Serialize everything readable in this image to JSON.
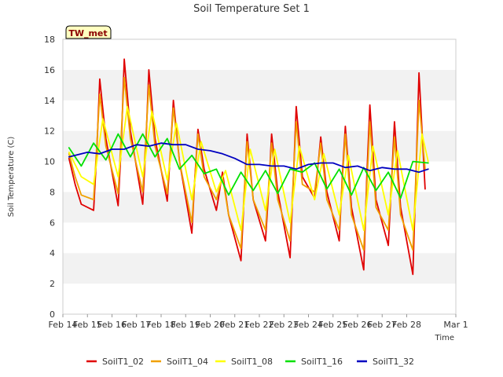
{
  "chart_data": {
    "type": "line",
    "title": "Soil Temperature Set 1",
    "tag": "TW_met",
    "xlabel": "Time",
    "ylabel": "Soil Temperature (C)",
    "xlim": [
      "2024-02-14",
      "2024-03-01"
    ],
    "ylim": [
      0,
      18
    ],
    "x_ticks": [
      {
        "date": "2024-02-14",
        "label": "Feb 14"
      },
      {
        "date": "2024-02-15",
        "label": "Feb 15"
      },
      {
        "date": "2024-02-16",
        "label": "Feb 16"
      },
      {
        "date": "2024-02-17",
        "label": "Feb 17"
      },
      {
        "date": "2024-02-18",
        "label": "Feb 18"
      },
      {
        "date": "2024-02-19",
        "label": "Feb 19"
      },
      {
        "date": "2024-02-20",
        "label": "Feb 20"
      },
      {
        "date": "2024-02-21",
        "label": "Feb 21"
      },
      {
        "date": "2024-02-22",
        "label": "Feb 22"
      },
      {
        "date": "2024-02-23",
        "label": "Feb 23"
      },
      {
        "date": "2024-02-24",
        "label": "Feb 24"
      },
      {
        "date": "2024-02-25",
        "label": "Feb 25"
      },
      {
        "date": "2024-02-26",
        "label": "Feb 26"
      },
      {
        "date": "2024-02-27",
        "label": "Feb 27"
      },
      {
        "date": "2024-02-28",
        "label": "Feb 28"
      },
      {
        "date": "2024-03-01",
        "label": "Mar 1"
      }
    ],
    "y_ticks": [
      0,
      2,
      4,
      6,
      8,
      10,
      12,
      14,
      16,
      18
    ],
    "grid": "horizontal bands",
    "legend": "bottom",
    "colors": {
      "band": "#f2f2f2",
      "plot_bg": "#ffffff",
      "axis": "#cccccc",
      "tag_bg": "#ffffc0"
    },
    "series": [
      {
        "name": "SoilT1_02",
        "color": "#e00000",
        "x": [
          "2024-02-14 06:00",
          "2024-02-14 12:00",
          "2024-02-14 18:00",
          "2024-02-15 06:00",
          "2024-02-15 09:00",
          "2024-02-15 12:00",
          "2024-02-15 18:00",
          "2024-02-16 06:00",
          "2024-02-16 09:00",
          "2024-02-16 12:00",
          "2024-02-16 18:00",
          "2024-02-17 06:00",
          "2024-02-17 09:00",
          "2024-02-17 12:00",
          "2024-02-17 18:00",
          "2024-02-18 06:00",
          "2024-02-18 09:00",
          "2024-02-18 12:00",
          "2024-02-18 18:00",
          "2024-02-19 06:00",
          "2024-02-19 09:00",
          "2024-02-19 12:00",
          "2024-02-19 18:00",
          "2024-02-20 06:00",
          "2024-02-20 09:00",
          "2024-02-20 12:00",
          "2024-02-20 18:00",
          "2024-02-21 06:00",
          "2024-02-21 09:00",
          "2024-02-21 12:00",
          "2024-02-21 18:00",
          "2024-02-22 06:00",
          "2024-02-22 09:00",
          "2024-02-22 12:00",
          "2024-02-22 18:00",
          "2024-02-23 06:00",
          "2024-02-23 09:00",
          "2024-02-23 12:00",
          "2024-02-23 18:00",
          "2024-02-24 06:00",
          "2024-02-24 09:00",
          "2024-02-24 12:00",
          "2024-02-24 18:00",
          "2024-02-25 06:00",
          "2024-02-25 09:00",
          "2024-02-25 12:00",
          "2024-02-25 18:00",
          "2024-02-26 06:00",
          "2024-02-26 09:00",
          "2024-02-26 12:00",
          "2024-02-26 18:00",
          "2024-02-27 06:00",
          "2024-02-27 09:00",
          "2024-02-27 12:00",
          "2024-02-27 18:00",
          "2024-02-28 06:00",
          "2024-02-28 09:00",
          "2024-02-28 12:00",
          "2024-02-28 18:00"
        ],
        "values": [
          10.2,
          8.5,
          7.2,
          6.8,
          10.5,
          15.4,
          11.5,
          7.1,
          11.0,
          16.7,
          12.0,
          7.2,
          11.0,
          16.0,
          11.5,
          7.4,
          10.5,
          14.0,
          10.0,
          5.3,
          9.0,
          12.1,
          9.5,
          6.8,
          8.0,
          9.3,
          6.5,
          3.5,
          7.5,
          11.8,
          7.5,
          4.8,
          8.0,
          11.8,
          8.0,
          3.7,
          8.5,
          13.6,
          9.0,
          7.6,
          9.5,
          11.6,
          8.0,
          4.8,
          9.0,
          12.3,
          7.0,
          2.9,
          9.0,
          13.7,
          7.5,
          4.5,
          8.5,
          12.6,
          7.0,
          2.6,
          9.0,
          15.8,
          8.2
        ]
      },
      {
        "name": "SoilT1_04",
        "color": "#f0a000",
        "x": [
          "2024-02-14 06:00",
          "2024-02-14 12:00",
          "2024-02-14 18:00",
          "2024-02-15 06:00",
          "2024-02-15 12:00",
          "2024-02-15 18:00",
          "2024-02-16 06:00",
          "2024-02-16 12:00",
          "2024-02-16 18:00",
          "2024-02-17 06:00",
          "2024-02-17 12:00",
          "2024-02-17 18:00",
          "2024-02-18 06:00",
          "2024-02-18 12:00",
          "2024-02-18 18:00",
          "2024-02-19 06:00",
          "2024-02-19 12:00",
          "2024-02-19 18:00",
          "2024-02-20 06:00",
          "2024-02-20 12:00",
          "2024-02-20 18:00",
          "2024-02-21 06:00",
          "2024-02-21 12:00",
          "2024-02-21 18:00",
          "2024-02-22 06:00",
          "2024-02-22 12:00",
          "2024-02-22 18:00",
          "2024-02-23 06:00",
          "2024-02-23 12:00",
          "2024-02-23 18:00",
          "2024-02-24 06:00",
          "2024-02-24 12:00",
          "2024-02-24 18:00",
          "2024-02-25 06:00",
          "2024-02-25 12:00",
          "2024-02-25 18:00",
          "2024-02-26 06:00",
          "2024-02-26 12:00",
          "2024-02-26 18:00",
          "2024-02-27 06:00",
          "2024-02-27 12:00",
          "2024-02-27 18:00",
          "2024-02-28 06:00",
          "2024-02-28 12:00",
          "2024-02-28 18:00"
        ],
        "values": [
          10.5,
          9.0,
          7.8,
          7.5,
          14.4,
          11.0,
          7.9,
          15.5,
          11.5,
          8.0,
          15.0,
          11.0,
          7.9,
          13.5,
          10.0,
          6.0,
          11.8,
          9.0,
          7.5,
          9.0,
          6.5,
          4.3,
          11.3,
          7.5,
          5.5,
          11.2,
          7.5,
          4.8,
          12.6,
          8.5,
          8.0,
          11.2,
          7.5,
          5.5,
          11.8,
          6.5,
          4.2,
          12.6,
          7.0,
          5.5,
          11.6,
          6.5,
          4.2,
          14.0,
          9.5
        ]
      },
      {
        "name": "SoilT1_08",
        "color": "#ffff00",
        "x": [
          "2024-02-14 06:00",
          "2024-02-14 18:00",
          "2024-02-15 06:00",
          "2024-02-15 15:00",
          "2024-02-16 06:00",
          "2024-02-16 15:00",
          "2024-02-17 06:00",
          "2024-02-17 15:00",
          "2024-02-18 06:00",
          "2024-02-18 15:00",
          "2024-02-19 06:00",
          "2024-02-19 15:00",
          "2024-02-20 06:00",
          "2024-02-20 15:00",
          "2024-02-21 06:00",
          "2024-02-21 15:00",
          "2024-02-22 06:00",
          "2024-02-22 15:00",
          "2024-02-23 06:00",
          "2024-02-23 15:00",
          "2024-02-24 06:00",
          "2024-02-24 15:00",
          "2024-02-25 06:00",
          "2024-02-25 15:00",
          "2024-02-26 06:00",
          "2024-02-26 15:00",
          "2024-02-27 06:00",
          "2024-02-27 15:00",
          "2024-02-28 06:00",
          "2024-02-28 15:00",
          "2024-02-28 21:00"
        ],
        "values": [
          10.6,
          9.0,
          8.5,
          12.8,
          9.0,
          13.6,
          9.0,
          13.3,
          8.8,
          12.5,
          7.5,
          11.3,
          8.0,
          9.4,
          5.5,
          10.8,
          6.8,
          10.8,
          6.0,
          11.0,
          7.5,
          10.5,
          6.5,
          10.4,
          5.5,
          11.0,
          6.5,
          10.7,
          5.5,
          11.8,
          10.0
        ]
      },
      {
        "name": "SoilT1_16",
        "color": "#00e000",
        "x": [
          "2024-02-14 06:00",
          "2024-02-14 18:00",
          "2024-02-15 06:00",
          "2024-02-15 18:00",
          "2024-02-16 06:00",
          "2024-02-16 18:00",
          "2024-02-17 06:00",
          "2024-02-17 18:00",
          "2024-02-18 06:00",
          "2024-02-18 18:00",
          "2024-02-19 06:00",
          "2024-02-19 18:00",
          "2024-02-20 06:00",
          "2024-02-20 18:00",
          "2024-02-21 06:00",
          "2024-02-21 18:00",
          "2024-02-22 06:00",
          "2024-02-22 18:00",
          "2024-02-23 06:00",
          "2024-02-23 18:00",
          "2024-02-24 06:00",
          "2024-02-24 18:00",
          "2024-02-25 06:00",
          "2024-02-25 18:00",
          "2024-02-26 06:00",
          "2024-02-26 18:00",
          "2024-02-27 06:00",
          "2024-02-27 18:00",
          "2024-02-28 06:00",
          "2024-02-28 21:00"
        ],
        "values": [
          10.9,
          9.7,
          11.2,
          10.1,
          11.8,
          10.3,
          11.8,
          10.3,
          11.5,
          9.5,
          10.4,
          9.2,
          9.5,
          7.8,
          9.3,
          8.1,
          9.4,
          7.9,
          9.5,
          9.3,
          9.9,
          8.2,
          9.5,
          7.8,
          9.6,
          8.1,
          9.3,
          7.6,
          10.0,
          9.9
        ]
      },
      {
        "name": "SoilT1_32",
        "color": "#0000c0",
        "x": [
          "2024-02-14 06:00",
          "2024-02-15 00:00",
          "2024-02-15 12:00",
          "2024-02-16 00:00",
          "2024-02-16 12:00",
          "2024-02-17 00:00",
          "2024-02-17 12:00",
          "2024-02-18 00:00",
          "2024-02-18 12:00",
          "2024-02-19 00:00",
          "2024-02-19 12:00",
          "2024-02-20 00:00",
          "2024-02-20 12:00",
          "2024-02-21 00:00",
          "2024-02-21 12:00",
          "2024-02-22 00:00",
          "2024-02-22 12:00",
          "2024-02-23 00:00",
          "2024-02-23 12:00",
          "2024-02-24 00:00",
          "2024-02-24 12:00",
          "2024-02-25 00:00",
          "2024-02-25 12:00",
          "2024-02-26 00:00",
          "2024-02-26 12:00",
          "2024-02-27 00:00",
          "2024-02-27 12:00",
          "2024-02-28 00:00",
          "2024-02-28 12:00",
          "2024-02-28 21:00"
        ],
        "values": [
          10.3,
          10.6,
          10.5,
          10.8,
          10.8,
          11.1,
          11.0,
          11.2,
          11.1,
          11.1,
          10.8,
          10.7,
          10.5,
          10.2,
          9.8,
          9.8,
          9.7,
          9.7,
          9.5,
          9.8,
          9.9,
          9.9,
          9.6,
          9.7,
          9.4,
          9.6,
          9.5,
          9.5,
          9.3,
          9.5
        ]
      }
    ]
  }
}
